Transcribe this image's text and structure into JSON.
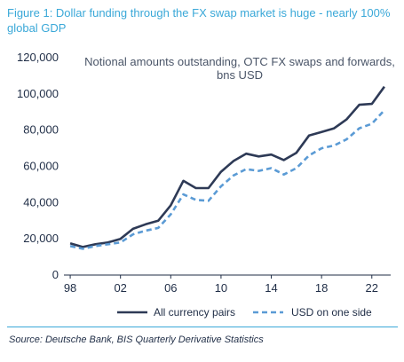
{
  "title": "Figure 1: Dollar funding through the FX swap market is huge - nearly 100% global GDP",
  "source": "Source: Deutsche Bank, BIS Quarterly Derivative Statistics",
  "chart_data": {
    "type": "line",
    "subtitle_lines": [
      "Notional amounts outstanding, OTC FX swaps and forwards,",
      "bns USD"
    ],
    "x_ticks": [
      "98",
      "02",
      "06",
      "10",
      "14",
      "18",
      "22"
    ],
    "y_ticks": [
      "0",
      "20,000",
      "40,000",
      "60,000",
      "80,000",
      "100,000",
      "120,000"
    ],
    "ylim": [
      0,
      120000
    ],
    "xlim": [
      1997.5,
      2023.5
    ],
    "grid": false,
    "legend_position": "bottom",
    "x": [
      1998,
      1999,
      2000,
      2001,
      2002,
      2003,
      2004,
      2005,
      2006,
      2007,
      2008,
      2009,
      2010,
      2011,
      2012,
      2013,
      2014,
      2015,
      2016,
      2017,
      2018,
      2019,
      2020,
      2021,
      2022,
      2023
    ],
    "series": [
      {
        "name": "All currency pairs",
        "color": "#2e3a56",
        "style": "solid",
        "values": [
          17500,
          15500,
          17000,
          18000,
          20000,
          25500,
          28000,
          30000,
          38500,
          52000,
          48000,
          48000,
          57000,
          63000,
          67000,
          65500,
          66500,
          63500,
          67500,
          77000,
          79000,
          81000,
          86000,
          94000,
          94500,
          104000
        ]
      },
      {
        "name": "USD on one side",
        "color": "#5b9bd5",
        "style": "dashed",
        "values": [
          16000,
          14500,
          16000,
          17000,
          18000,
          22500,
          24500,
          26000,
          33500,
          44500,
          41500,
          41000,
          49000,
          55000,
          58500,
          57500,
          59000,
          55500,
          59000,
          66000,
          70000,
          71500,
          75000,
          81000,
          83500,
          91000
        ]
      }
    ]
  }
}
